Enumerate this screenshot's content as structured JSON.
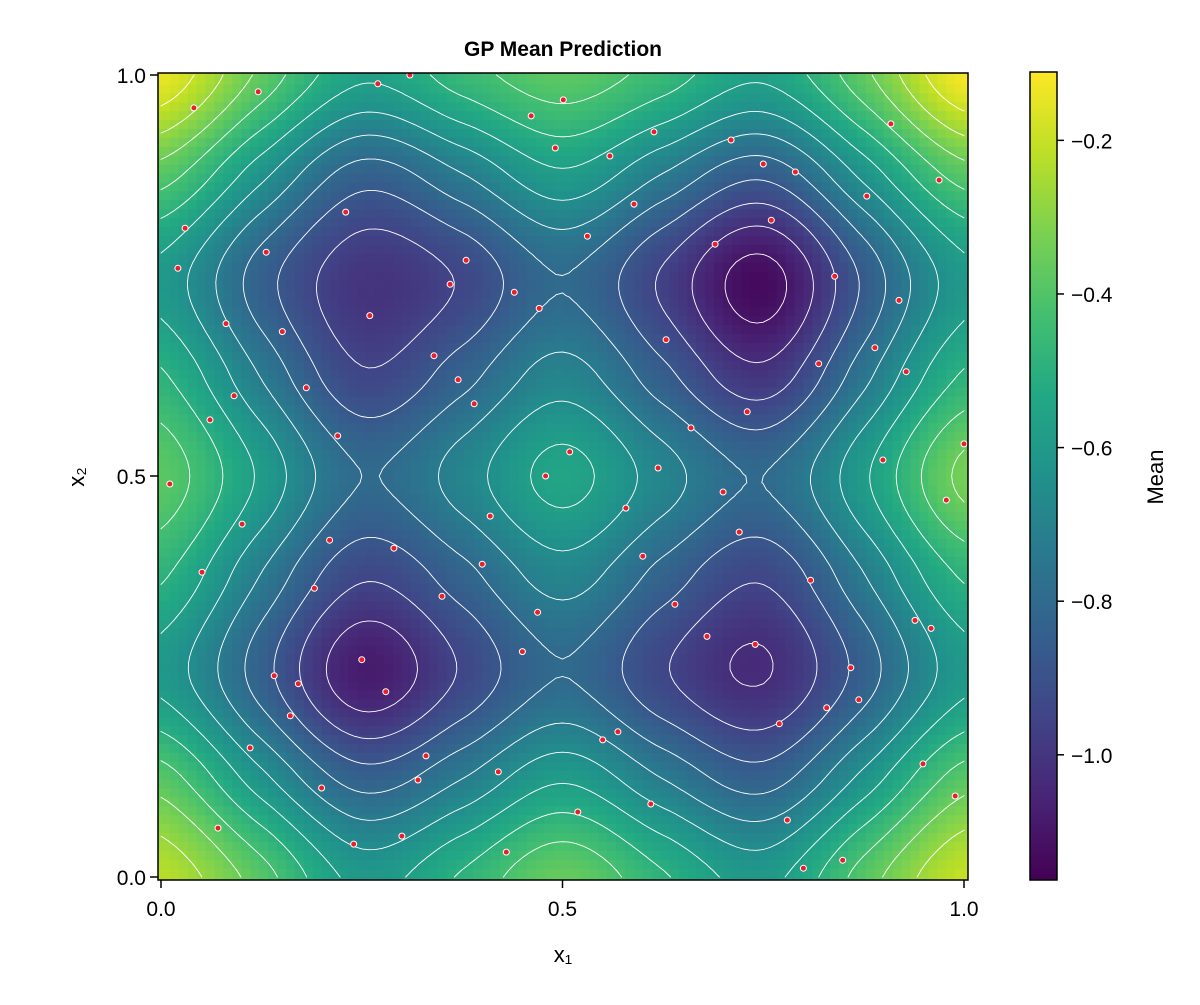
{
  "chart_data": {
    "type": "heatmap",
    "title": "GP Mean Prediction",
    "xlabel": "x₁",
    "ylabel": "x₂",
    "xlim": [
      0,
      1
    ],
    "ylim": [
      0,
      1
    ],
    "x_ticks": [
      "0.0",
      "0.5",
      "1.0"
    ],
    "x_tick_values": [
      0,
      0.5,
      1
    ],
    "y_ticks": [
      "0.0",
      "0.5",
      "1.0"
    ],
    "y_tick_values": [
      0,
      0.5,
      1
    ],
    "colormap": "viridis",
    "colorbar": {
      "label": "Mean",
      "range": [
        -1.163,
        -0.111
      ],
      "ticks": [
        "−0.2",
        "−0.4",
        "−0.6",
        "−0.8",
        "−1.0"
      ],
      "tick_values": [
        -0.2,
        -0.4,
        -0.6,
        -0.8,
        -1.0
      ]
    },
    "grid": false,
    "mean_grid": {
      "x": [
        0,
        0.125,
        0.25,
        0.375,
        0.5,
        0.625,
        0.75,
        0.875,
        1
      ],
      "y": [
        0,
        0.125,
        0.25,
        0.375,
        0.5,
        0.625,
        0.75,
        0.875,
        1
      ],
      "z": [
        [
          -0.22,
          -0.39,
          -0.6,
          -0.49,
          -0.36,
          -0.49,
          -0.6,
          -0.39,
          -0.2
        ],
        [
          -0.39,
          -0.63,
          -0.84,
          -0.73,
          -0.59,
          -0.73,
          -0.84,
          -0.63,
          -0.39
        ],
        [
          -0.6,
          -0.84,
          -1.08,
          -0.94,
          -0.8,
          -0.94,
          -1.03,
          -0.84,
          -0.6
        ],
        [
          -0.49,
          -0.73,
          -0.94,
          -0.83,
          -0.69,
          -0.83,
          -0.94,
          -0.73,
          -0.49
        ],
        [
          -0.38,
          -0.59,
          -0.8,
          -0.69,
          -0.55,
          -0.69,
          -0.8,
          -0.59,
          -0.33
        ],
        [
          -0.49,
          -0.73,
          -0.94,
          -0.83,
          -0.69,
          -0.85,
          -1.0,
          -0.75,
          -0.49
        ],
        [
          -0.6,
          -0.84,
          -1.0,
          -0.94,
          -0.8,
          -0.96,
          -1.13,
          -0.86,
          -0.6
        ],
        [
          -0.39,
          -0.63,
          -0.84,
          -0.73,
          -0.59,
          -0.73,
          -0.86,
          -0.63,
          -0.39
        ],
        [
          -0.14,
          -0.37,
          -0.56,
          -0.46,
          -0.38,
          -0.46,
          -0.56,
          -0.37,
          -0.12
        ]
      ]
    },
    "contour_levels": [
      -1.1,
      -1.025,
      -0.95,
      -0.875,
      -0.8,
      -0.725,
      -0.65,
      -0.575,
      -0.5,
      -0.425,
      -0.35,
      -0.275,
      -0.2
    ],
    "contour_color": "#ffffff",
    "points_color": "#e8202a",
    "points_edge_color": "#ffffff",
    "points": [
      [
        0.041,
        0.959
      ],
      [
        0.121,
        0.979
      ],
      [
        0.27,
        0.989
      ],
      [
        0.31,
        1.0
      ],
      [
        0.501,
        0.969
      ],
      [
        0.461,
        0.949
      ],
      [
        0.491,
        0.909
      ],
      [
        0.559,
        0.899
      ],
      [
        0.614,
        0.929
      ],
      [
        0.71,
        0.919
      ],
      [
        0.75,
        0.889
      ],
      [
        0.79,
        0.879
      ],
      [
        0.909,
        0.939
      ],
      [
        0.969,
        0.869
      ],
      [
        0.879,
        0.849
      ],
      [
        0.589,
        0.839
      ],
      [
        0.531,
        0.799
      ],
      [
        0.23,
        0.829
      ],
      [
        0.03,
        0.809
      ],
      [
        0.131,
        0.779
      ],
      [
        0.021,
        0.759
      ],
      [
        0.38,
        0.769
      ],
      [
        0.36,
        0.739
      ],
      [
        0.44,
        0.729
      ],
      [
        0.471,
        0.709
      ],
      [
        0.69,
        0.789
      ],
      [
        0.76,
        0.819
      ],
      [
        0.839,
        0.749
      ],
      [
        0.919,
        0.719
      ],
      [
        0.081,
        0.69
      ],
      [
        0.26,
        0.7
      ],
      [
        0.151,
        0.68
      ],
      [
        0.34,
        0.65
      ],
      [
        0.629,
        0.67
      ],
      [
        0.889,
        0.66
      ],
      [
        0.819,
        0.64
      ],
      [
        0.928,
        0.63
      ],
      [
        0.37,
        0.62
      ],
      [
        0.181,
        0.61
      ],
      [
        0.091,
        0.6
      ],
      [
        0.39,
        0.59
      ],
      [
        0.73,
        0.58
      ],
      [
        0.061,
        0.57
      ],
      [
        0.66,
        0.56
      ],
      [
        0.22,
        0.55
      ],
      [
        1.0,
        0.54
      ],
      [
        0.509,
        0.53
      ],
      [
        0.619,
        0.51
      ],
      [
        0.479,
        0.5
      ],
      [
        0.899,
        0.52
      ],
      [
        0.011,
        0.49
      ],
      [
        0.7,
        0.48
      ],
      [
        0.978,
        0.47
      ],
      [
        0.579,
        0.46
      ],
      [
        0.101,
        0.44
      ],
      [
        0.41,
        0.45
      ],
      [
        0.21,
        0.42
      ],
      [
        0.29,
        0.41
      ],
      [
        0.72,
        0.43
      ],
      [
        0.6,
        0.4
      ],
      [
        0.4,
        0.39
      ],
      [
        0.051,
        0.38
      ],
      [
        0.809,
        0.37
      ],
      [
        0.191,
        0.36
      ],
      [
        0.35,
        0.35
      ],
      [
        0.64,
        0.34
      ],
      [
        0.469,
        0.33
      ],
      [
        0.939,
        0.32
      ],
      [
        0.959,
        0.31
      ],
      [
        0.68,
        0.3
      ],
      [
        0.74,
        0.29
      ],
      [
        0.45,
        0.281
      ],
      [
        0.25,
        0.271
      ],
      [
        0.859,
        0.261
      ],
      [
        0.141,
        0.251
      ],
      [
        0.171,
        0.241
      ],
      [
        0.28,
        0.231
      ],
      [
        0.869,
        0.221
      ],
      [
        0.829,
        0.211
      ],
      [
        0.161,
        0.201
      ],
      [
        0.77,
        0.191
      ],
      [
        0.569,
        0.181
      ],
      [
        0.55,
        0.171
      ],
      [
        0.111,
        0.161
      ],
      [
        0.33,
        0.151
      ],
      [
        0.949,
        0.141
      ],
      [
        0.42,
        0.131
      ],
      [
        0.32,
        0.121
      ],
      [
        0.2,
        0.111
      ],
      [
        0.989,
        0.101
      ],
      [
        0.61,
        0.091
      ],
      [
        0.519,
        0.081
      ],
      [
        0.78,
        0.071
      ],
      [
        0.071,
        0.061
      ],
      [
        0.3,
        0.051
      ],
      [
        0.24,
        0.041
      ],
      [
        0.43,
        0.031
      ],
      [
        0.849,
        0.021
      ],
      [
        0.8,
        0.011
      ]
    ]
  }
}
